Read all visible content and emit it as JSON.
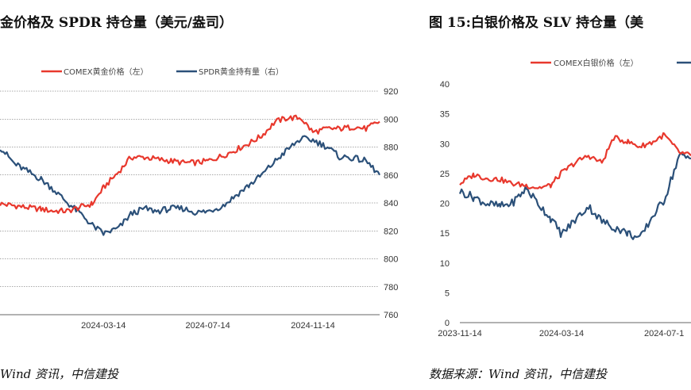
{
  "left_figure": {
    "title": "金价格及 SPDR 持仓量（美元/盎司）",
    "source": "Wind 资讯，中信建投"
  },
  "right_figure": {
    "title": "图 15:白银价格及 SLV 持仓量（美",
    "source": "数据来源：Wind 资讯，中信建投"
  },
  "chart_data": [
    {
      "type": "line",
      "title": "金价格及 SPDR 持仓量（美元/盎司）",
      "x_tick_labels": [
        "2024-03-14",
        "2024-07-14",
        "2024-11-14"
      ],
      "y_right_ticks": [
        760,
        780,
        800,
        820,
        840,
        860,
        880,
        900,
        920
      ],
      "y_right_lim": [
        760,
        920
      ],
      "legend_position": "top",
      "grid": true,
      "colors": {
        "gold": "#e8382d",
        "spdr": "#2b5079"
      },
      "series": [
        {
          "name": "COMEX黄金价格（左）",
          "axis": "left",
          "x": [
            "2023-11-14",
            "2023-12-01",
            "2023-12-15",
            "2024-01-01",
            "2024-01-15",
            "2024-02-01",
            "2024-02-15",
            "2024-03-01",
            "2024-03-14",
            "2024-04-01",
            "2024-04-15",
            "2024-05-01",
            "2024-05-15",
            "2024-06-01",
            "2024-06-15",
            "2024-07-01",
            "2024-07-14",
            "2024-08-01",
            "2024-08-15",
            "2024-09-01",
            "2024-09-15",
            "2024-10-01",
            "2024-10-15",
            "2024-10-31",
            "2024-11-14",
            "2024-12-01",
            "2024-12-15",
            "2025-01-01",
            "2025-01-15",
            "2025-01-31"
          ],
          "values": [
            62,
            61,
            60,
            59,
            58,
            58,
            60,
            62,
            71,
            80,
            88,
            88,
            87,
            86,
            85,
            85,
            86,
            89,
            92,
            96,
            100,
            108,
            110,
            110,
            102,
            104,
            104,
            105,
            104,
            108
          ]
        },
        {
          "name": "SPDR黄金持有量（右）",
          "axis": "right",
          "x": [
            "2023-11-14",
            "2023-12-01",
            "2023-12-15",
            "2024-01-01",
            "2024-01-15",
            "2024-02-01",
            "2024-02-15",
            "2024-03-01",
            "2024-03-14",
            "2024-04-01",
            "2024-04-15",
            "2024-05-01",
            "2024-05-15",
            "2024-06-01",
            "2024-06-15",
            "2024-07-01",
            "2024-07-14",
            "2024-08-01",
            "2024-08-15",
            "2024-09-01",
            "2024-09-15",
            "2024-10-01",
            "2024-10-15",
            "2024-10-31",
            "2024-11-14",
            "2024-12-01",
            "2024-12-15",
            "2025-01-01",
            "2025-01-15",
            "2025-01-31"
          ],
          "values": [
            880,
            868,
            863,
            857,
            850,
            840,
            833,
            824,
            818,
            822,
            832,
            836,
            834,
            836,
            836,
            833,
            834,
            838,
            845,
            853,
            860,
            870,
            878,
            886,
            885,
            880,
            873,
            872,
            870,
            860
          ]
        }
      ]
    },
    {
      "type": "line",
      "title": "图 15:白银价格及 SLV 持仓量（美",
      "x_tick_labels": [
        "2023-11-14",
        "2024-03-14",
        "2024-07-1"
      ],
      "y_left_ticks": [
        0,
        5,
        10,
        15,
        20,
        25,
        30,
        35,
        40
      ],
      "y_left_lim": [
        0,
        40
      ],
      "legend_position": "top",
      "grid": false,
      "colors": {
        "silver": "#e8382d",
        "slv": "#2b5079"
      },
      "series": [
        {
          "name": "COMEX白银价格（左）",
          "axis": "left",
          "x": [
            "2023-11-14",
            "2023-12-01",
            "2023-12-15",
            "2024-01-01",
            "2024-01-15",
            "2024-02-01",
            "2024-02-15",
            "2024-03-01",
            "2024-03-14",
            "2024-04-01",
            "2024-04-15",
            "2024-05-01",
            "2024-05-15",
            "2024-06-01",
            "2024-06-15",
            "2024-07-01",
            "2024-07-14",
            "2024-08-01",
            "2024-08-15"
          ],
          "values": [
            23.3,
            24.8,
            24.2,
            24.0,
            23.3,
            23.0,
            22.6,
            23.0,
            25.1,
            27.0,
            28.0,
            26.8,
            31.0,
            30.3,
            29.5,
            30.3,
            31.5,
            28.5,
            28.0
          ]
        },
        {
          "name": "",
          "axis": "right",
          "x": [
            "2023-11-14",
            "2023-12-01",
            "2023-12-15",
            "2024-01-01",
            "2024-01-15",
            "2024-02-01",
            "2024-02-15",
            "2024-03-01",
            "2024-03-14",
            "2024-04-01",
            "2024-04-15",
            "2024-05-01",
            "2024-05-15",
            "2024-06-01",
            "2024-06-15",
            "2024-07-01",
            "2024-07-14",
            "2024-08-01",
            "2024-08-15"
          ],
          "values": [
            22.0,
            21.0,
            20.0,
            19.5,
            20.0,
            22.5,
            20.0,
            17.5,
            14.8,
            17.5,
            19.5,
            17.0,
            16.0,
            15.0,
            14.0,
            18.0,
            20.5,
            28.0,
            27.5
          ]
        }
      ]
    }
  ]
}
